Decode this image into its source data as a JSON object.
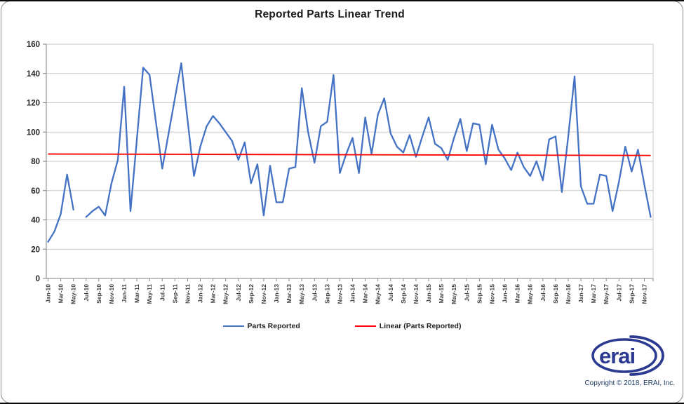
{
  "title": "Reported Parts Linear Trend",
  "legend": {
    "items": [
      {
        "label": "Parts Reported",
        "color": "#4472C4"
      },
      {
        "label": "Linear (Parts Reported)",
        "color": "#FF0000"
      }
    ]
  },
  "footer": {
    "logo_text": "erai",
    "logo_color": "#2B3990",
    "copyright": "Copyright © 2018, ERAI, Inc."
  },
  "chart_data": {
    "type": "line",
    "title": "Reported Parts Linear Trend",
    "grid": true,
    "legend_position": "bottom",
    "ylim": [
      0,
      160
    ],
    "y_ticks": [
      0,
      20,
      40,
      60,
      80,
      100,
      120,
      140,
      160
    ],
    "x_tick_labels": [
      "Jan-10",
      "Mar-10",
      "May-10",
      "Jul-10",
      "Sep-10",
      "Nov-10",
      "Jan-11",
      "Mar-11",
      "May-11",
      "Jul-11",
      "Sep-11",
      "Nov-11",
      "Jan-12",
      "Mar-12",
      "May-12",
      "Jul-12",
      "Sep-12",
      "Nov-12",
      "Jan-13",
      "Mar-13",
      "May-13",
      "Jul-13",
      "Sep-13",
      "Nov-13",
      "Jan-14",
      "Mar-14",
      "May-14",
      "Jul-14",
      "Sep-14",
      "Nov-14",
      "Jan-15",
      "Mar-15",
      "May-15",
      "Jul-15",
      "Sep-15",
      "Nov-15",
      "Jan-16",
      "Mar-16",
      "May-16",
      "Jul-16",
      "Sep-16",
      "Nov-16",
      "Jan-17",
      "Mar-17",
      "May-17",
      "Jul-17",
      "Sep-17",
      "Nov-17"
    ],
    "x": [
      "Jan-10",
      "Feb-10",
      "Mar-10",
      "Apr-10",
      "May-10",
      "Jun-10",
      "Jul-10",
      "Aug-10",
      "Sep-10",
      "Oct-10",
      "Nov-10",
      "Dec-10",
      "Jan-11",
      "Feb-11",
      "Mar-11",
      "Apr-11",
      "May-11",
      "Jun-11",
      "Jul-11",
      "Aug-11",
      "Sep-11",
      "Oct-11",
      "Nov-11",
      "Dec-11",
      "Jan-12",
      "Feb-12",
      "Mar-12",
      "Apr-12",
      "May-12",
      "Jun-12",
      "Jul-12",
      "Aug-12",
      "Sep-12",
      "Oct-12",
      "Nov-12",
      "Dec-12",
      "Jan-13",
      "Feb-13",
      "Mar-13",
      "Apr-13",
      "May-13",
      "Jun-13",
      "Jul-13",
      "Aug-13",
      "Sep-13",
      "Oct-13",
      "Nov-13",
      "Dec-13",
      "Jan-14",
      "Feb-14",
      "Mar-14",
      "Apr-14",
      "May-14",
      "Jun-14",
      "Jul-14",
      "Aug-14",
      "Sep-14",
      "Oct-14",
      "Nov-14",
      "Dec-14",
      "Jan-15",
      "Feb-15",
      "Mar-15",
      "Apr-15",
      "May-15",
      "Jun-15",
      "Jul-15",
      "Aug-15",
      "Sep-15",
      "Oct-15",
      "Nov-15",
      "Dec-15",
      "Jan-16",
      "Feb-16",
      "Mar-16",
      "Apr-16",
      "May-16",
      "Jun-16",
      "Jul-16",
      "Aug-16",
      "Sep-16",
      "Oct-16",
      "Nov-16",
      "Dec-16",
      "Jan-17",
      "Feb-17",
      "Mar-17",
      "Apr-17",
      "May-17",
      "Jun-17",
      "Jul-17",
      "Aug-17",
      "Sep-17",
      "Oct-17",
      "Nov-17",
      "Dec-17"
    ],
    "series": [
      {
        "name": "Parts Reported",
        "type": "line",
        "color": "#4472C4",
        "values": [
          25,
          32,
          44,
          71,
          47,
          null,
          42,
          46,
          49,
          43,
          65,
          81,
          131,
          46,
          95,
          144,
          139,
          107,
          75,
          99,
          123,
          147,
          108,
          70,
          90,
          104,
          111,
          106,
          100,
          94,
          81,
          93,
          65,
          78,
          43,
          77,
          52,
          52,
          75,
          76,
          130,
          100,
          79,
          104,
          107,
          139,
          72,
          85,
          96,
          72,
          110,
          85,
          112,
          123,
          99,
          90,
          86,
          98,
          83,
          97,
          110,
          92,
          89,
          81,
          96,
          109,
          87,
          106,
          105,
          78,
          105,
          88,
          82,
          74,
          86,
          76,
          70,
          80,
          67,
          95,
          97,
          59,
          97,
          138,
          63,
          51,
          51,
          71,
          70,
          46,
          66,
          90,
          73,
          88,
          64,
          42
        ]
      },
      {
        "name": "Linear (Parts Reported)",
        "type": "trendline",
        "color": "#FF0000",
        "start_value": 85,
        "end_value": 84
      }
    ]
  }
}
